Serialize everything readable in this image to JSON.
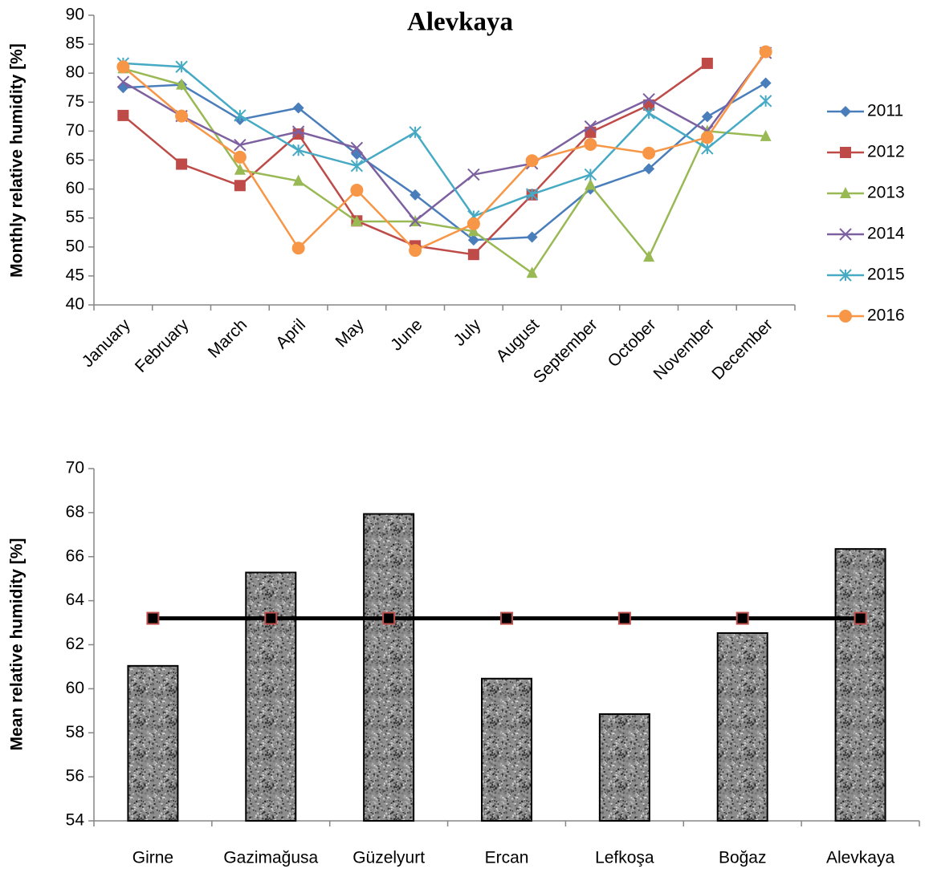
{
  "chart_data": [
    {
      "type": "line",
      "title": "Alevkaya",
      "y_label": "Monthly relative humidity [%]",
      "categories": [
        "January",
        "February",
        "March",
        "April",
        "May",
        "June",
        "July",
        "August",
        "September",
        "October",
        "November",
        "December"
      ],
      "series": [
        {
          "name": "2011",
          "color": "#4a7ebb",
          "marker": "diamond",
          "values": [
            77.5,
            78,
            72,
            74,
            66,
            59,
            51.2,
            51.7,
            60,
            63.5,
            72.5,
            78.3
          ]
        },
        {
          "name": "2012",
          "color": "#be4b48",
          "marker": "square",
          "values": [
            72.7,
            64.3,
            60.6,
            69.5,
            54.5,
            50.2,
            48.7,
            59,
            69.8,
            74.5,
            81.7,
            null
          ]
        },
        {
          "name": "2013",
          "color": "#98b954",
          "marker": "triangle",
          "values": [
            80.8,
            78,
            63.3,
            61.4,
            54.4,
            54.4,
            52.7,
            45.5,
            60.7,
            48.3,
            70,
            69.1
          ]
        },
        {
          "name": "2014",
          "color": "#7d60a0",
          "marker": "x",
          "values": [
            78.5,
            72.6,
            67.6,
            69.9,
            67.1,
            54.5,
            62.5,
            64.4,
            70.8,
            75.5,
            70,
            83.5
          ]
        },
        {
          "name": "2015",
          "color": "#46aac5",
          "marker": "star",
          "values": [
            81.7,
            81.1,
            72.7,
            66.7,
            64,
            69.8,
            55.3,
            59.1,
            62.5,
            73.1,
            67,
            75.2
          ]
        },
        {
          "name": "2016",
          "color": "#f79646",
          "marker": "circle",
          "values": [
            81.1,
            72.6,
            65.5,
            49.8,
            59.8,
            49.4,
            54,
            64.9,
            67.7,
            66.2,
            68.9,
            83.7
          ]
        }
      ],
      "ylim": [
        40,
        90
      ],
      "yticks": [
        40,
        45,
        50,
        55,
        60,
        65,
        70,
        75,
        80,
        85,
        90
      ],
      "grid": false,
      "legend": "right"
    },
    {
      "type": "bar",
      "y_label": "Mean relative humidity [%]",
      "categories": [
        "Girne",
        "Gazimağusa",
        "Güzelyurt",
        "Ercan",
        "Lefkoşa",
        "Boğaz",
        "Alevkaya"
      ],
      "series": [
        {
          "color": "#8c8c8c",
          "values": [
            61.04,
            65.28,
            67.94,
            60.46,
            58.85,
            62.53,
            66.35
          ]
        },
        {
          "type": "line",
          "color": "#000000",
          "marker": "square",
          "marker_edge_color": "#c0504d",
          "values": [
            63.2,
            63.2,
            63.2,
            63.2,
            63.2,
            63.2,
            63.2
          ]
        }
      ],
      "ylim": [
        54,
        70
      ],
      "yticks": [
        54,
        56,
        58,
        60,
        62,
        64,
        66,
        68,
        70
      ],
      "grid": false
    }
  ]
}
